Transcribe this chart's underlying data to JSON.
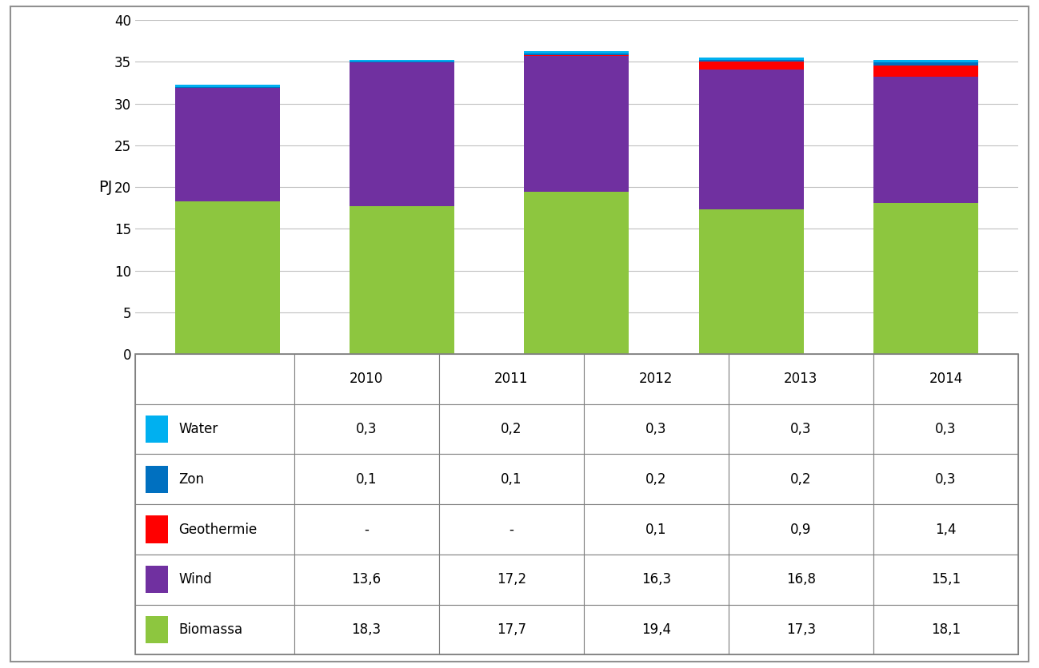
{
  "years": [
    "2010",
    "2011",
    "2012",
    "2013",
    "2014"
  ],
  "categories": [
    "Biomassa",
    "Wind",
    "Geothermie",
    "Zon",
    "Water"
  ],
  "colors": [
    "#8DC63F",
    "#7030A0",
    "#FF0000",
    "#0070C0",
    "#00B0F0"
  ],
  "values": {
    "Biomassa": [
      18.3,
      17.7,
      19.4,
      17.3,
      18.1
    ],
    "Wind": [
      13.6,
      17.2,
      16.3,
      16.8,
      15.1
    ],
    "Geothermie": [
      0.0,
      0.0,
      0.1,
      0.9,
      1.4
    ],
    "Zon": [
      0.1,
      0.1,
      0.2,
      0.2,
      0.3
    ],
    "Water": [
      0.3,
      0.2,
      0.3,
      0.3,
      0.3
    ]
  },
  "table_values": {
    "Water": [
      "0,3",
      "0,2",
      "0,3",
      "0,3",
      "0,3"
    ],
    "Zon": [
      "0,1",
      "0,1",
      "0,2",
      "0,2",
      "0,3"
    ],
    "Geothermie": [
      "-",
      "-",
      "0,1",
      "0,9",
      "1,4"
    ],
    "Wind": [
      "13,6",
      "17,2",
      "16,3",
      "16,8",
      "15,1"
    ],
    "Biomassa": [
      "18,3",
      "17,7",
      "19,4",
      "17,3",
      "18,1"
    ]
  },
  "ylabel": "PJ",
  "ylim": [
    0,
    40
  ],
  "yticks": [
    0,
    5,
    10,
    15,
    20,
    25,
    30,
    35,
    40
  ],
  "bar_width": 0.6,
  "bg_color": "#FFFFFF",
  "grid_color": "#C0C0C0",
  "border_color": "#808080",
  "table_row_order": [
    "Water",
    "Zon",
    "Geothermie",
    "Wind",
    "Biomassa"
  ],
  "font_size_table": 12,
  "font_size_axis": 12
}
